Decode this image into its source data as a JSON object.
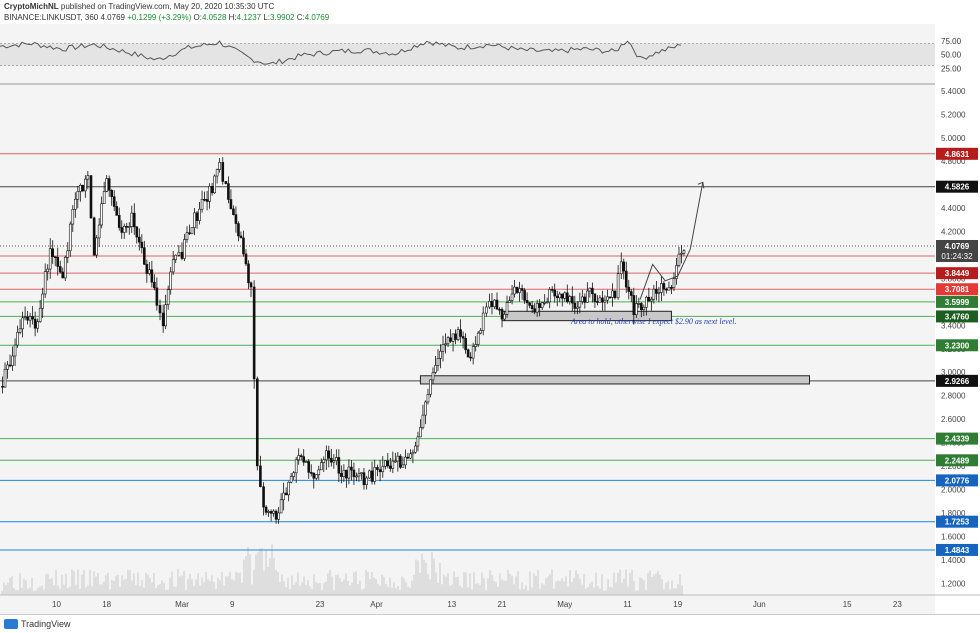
{
  "header": {
    "publisher": "CryptoMichNL",
    "published_text": "published on TradingView.com, May 20, 2020 10:35:30 UTC",
    "symbol": "BINANCE:LINKUSDT, 360",
    "last": "4.0769",
    "change": "+0.1299 (+3.29%)",
    "o_label": "O:",
    "o": "4.0528",
    "h_label": "H:",
    "h": "4.1237",
    "l_label": "L:",
    "l": "3.9902",
    "c_label": "C:",
    "c": "4.0769"
  },
  "footer": {
    "brand": "TradingView"
  },
  "chart_data": {
    "type": "candlestick",
    "timeframe": "360",
    "ylim": [
      1.1,
      5.45
    ],
    "y_ticks": [
      "5.4000",
      "5.2000",
      "5.0000",
      "4.8000",
      "4.6000",
      "4.4000",
      "4.2000",
      "4.0000",
      "3.8000",
      "3.6000",
      "3.4000",
      "3.2000",
      "3.0000",
      "2.8000",
      "2.6000",
      "2.4000",
      "2.2000",
      "2.0000",
      "1.8000",
      "1.6000",
      "1.4000",
      "1.2000"
    ],
    "x_ticks": [
      "10",
      "18",
      "Mar",
      "9",
      "23",
      "Apr",
      "13",
      "21",
      "May",
      "11",
      "19",
      "Jun",
      "15",
      "23"
    ],
    "price_path": [
      [
        "2020-02-01",
        2.88
      ],
      [
        "2020-02-03",
        3.15
      ],
      [
        "2020-02-05",
        3.48
      ],
      [
        "2020-02-07",
        3.42
      ],
      [
        "2020-02-09",
        4.05
      ],
      [
        "2020-02-11",
        3.82
      ],
      [
        "2020-02-13",
        4.48
      ],
      [
        "2020-02-15",
        4.62
      ],
      [
        "2020-02-16",
        4.02
      ],
      [
        "2020-02-18",
        4.68
      ],
      [
        "2020-02-20",
        4.22
      ],
      [
        "2020-02-22",
        4.32
      ],
      [
        "2020-02-24",
        3.95
      ],
      [
        "2020-02-26",
        3.62
      ],
      [
        "2020-02-27",
        3.42
      ],
      [
        "2020-02-29",
        4.05
      ],
      [
        "2020-03-01",
        4.02
      ],
      [
        "2020-03-03",
        4.32
      ],
      [
        "2020-03-05",
        4.48
      ],
      [
        "2020-03-07",
        4.75
      ],
      [
        "2020-03-08",
        4.58
      ],
      [
        "2020-03-10",
        4.18
      ],
      [
        "2020-03-12",
        3.72
      ],
      [
        "2020-03-13",
        2.22
      ],
      [
        "2020-03-14",
        1.85
      ],
      [
        "2020-03-16",
        1.75
      ],
      [
        "2020-03-18",
        2.05
      ],
      [
        "2020-03-20",
        2.32
      ],
      [
        "2020-03-22",
        2.12
      ],
      [
        "2020-03-24",
        2.35
      ],
      [
        "2020-03-26",
        2.18
      ],
      [
        "2020-03-28",
        2.12
      ],
      [
        "2020-03-30",
        2.08
      ],
      [
        "2020-04-02",
        2.18
      ],
      [
        "2020-04-04",
        2.22
      ],
      [
        "2020-04-06",
        2.28
      ],
      [
        "2020-04-08",
        2.52
      ],
      [
        "2020-04-10",
        3.02
      ],
      [
        "2020-04-12",
        3.28
      ],
      [
        "2020-04-14",
        3.32
      ],
      [
        "2020-04-16",
        3.12
      ],
      [
        "2020-04-18",
        3.45
      ],
      [
        "2020-04-19",
        3.62
      ],
      [
        "2020-04-21",
        3.48
      ],
      [
        "2020-04-23",
        3.68
      ],
      [
        "2020-04-25",
        3.62
      ],
      [
        "2020-04-27",
        3.52
      ],
      [
        "2020-04-29",
        3.72
      ],
      [
        "2020-05-01",
        3.62
      ],
      [
        "2020-05-03",
        3.58
      ],
      [
        "2020-05-05",
        3.68
      ],
      [
        "2020-05-07",
        3.62
      ],
      [
        "2020-05-09",
        3.65
      ],
      [
        "2020-05-10",
        3.92
      ],
      [
        "2020-05-12",
        3.52
      ],
      [
        "2020-05-14",
        3.62
      ],
      [
        "2020-05-16",
        3.68
      ],
      [
        "2020-05-18",
        3.78
      ],
      [
        "2020-05-20",
        4.08
      ]
    ],
    "forecast_path": [
      [
        "2020-05-13",
        3.62
      ],
      [
        "2020-05-15",
        3.92
      ],
      [
        "2020-05-17",
        3.78
      ],
      [
        "2020-05-19",
        3.82
      ],
      [
        "2020-05-21",
        4.05
      ],
      [
        "2020-05-23",
        4.62
      ]
    ],
    "levels": [
      {
        "price": "4.8631",
        "line_color": "#e06666",
        "label_bg": "#b71c1c",
        "label_color": "#ffffff"
      },
      {
        "price": "4.5826",
        "line_color": "#444444",
        "label_bg": "#111111",
        "label_color": "#ffffff"
      },
      {
        "price": "3.9914",
        "line_color": "#e06666",
        "label_bg": "#d32f2f",
        "label_color": "#ffffff"
      },
      {
        "price": "3.8449",
        "line_color": "#e06666",
        "label_bg": "#b71c1c",
        "label_color": "#ffffff"
      },
      {
        "price": "3.7081",
        "line_color": "#e06666",
        "label_bg": "#e53935",
        "label_color": "#ffffff"
      },
      {
        "price": "3.5999",
        "line_color": "#4caf50",
        "label_bg": "#2e7d32",
        "label_color": "#ffffff"
      },
      {
        "price": "3.4760",
        "line_color": "#4caf50",
        "label_bg": "#1b5e20",
        "label_color": "#ffffff"
      },
      {
        "price": "3.2300",
        "line_color": "#4caf50",
        "label_bg": "#2e7d32",
        "label_color": "#ffffff"
      },
      {
        "price": "2.9266",
        "line_color": "#444444",
        "label_bg": "#111111",
        "label_color": "#ffffff"
      },
      {
        "price": "2.4339",
        "line_color": "#4caf50",
        "label_bg": "#2e7d32",
        "label_color": "#ffffff"
      },
      {
        "price": "2.2489",
        "line_color": "#4caf50",
        "label_bg": "#2e7d32",
        "label_color": "#ffffff"
      },
      {
        "price": "2.0776",
        "line_color": "#1e88e5",
        "label_bg": "#1565c0",
        "label_color": "#ffffff"
      },
      {
        "price": "1.7253",
        "line_color": "#1e88e5",
        "label_bg": "#1565c0",
        "label_color": "#ffffff"
      },
      {
        "price": "1.4843",
        "line_color": "#1e88e5",
        "label_bg": "#1565c0",
        "label_color": "#ffffff"
      }
    ],
    "current_price": {
      "price": "4.0769",
      "timer": "01:24:32",
      "label_bg": "#444444",
      "label_color": "#ffffff"
    },
    "zones": [
      {
        "from": "2020-04-21",
        "to": "2020-05-18",
        "low": 3.44,
        "high": 3.52
      },
      {
        "from": "2020-04-08",
        "to": "2020-06-09",
        "low": 2.9,
        "high": 2.97
      }
    ],
    "annotation": "Area to hold, otherwise I expect $2.90 as next level.",
    "rsi": {
      "ticks": [
        "75.00",
        "50.00",
        "25.00"
      ],
      "band": [
        30,
        70
      ],
      "path": [
        [
          "2020-02-01",
          65
        ],
        [
          "2020-02-06",
          70
        ],
        [
          "2020-02-11",
          60
        ],
        [
          "2020-02-16",
          68
        ],
        [
          "2020-02-21",
          55
        ],
        [
          "2020-02-26",
          40
        ],
        [
          "2020-03-02",
          62
        ],
        [
          "2020-03-07",
          72
        ],
        [
          "2020-03-12",
          42
        ],
        [
          "2020-03-15",
          32
        ],
        [
          "2020-03-20",
          48
        ],
        [
          "2020-03-25",
          55
        ],
        [
          "2020-03-30",
          58
        ],
        [
          "2020-04-04",
          52
        ],
        [
          "2020-04-09",
          74
        ],
        [
          "2020-04-14",
          62
        ],
        [
          "2020-04-19",
          68
        ],
        [
          "2020-04-24",
          58
        ],
        [
          "2020-04-29",
          55
        ],
        [
          "2020-05-04",
          60
        ],
        [
          "2020-05-09",
          55
        ],
        [
          "2020-05-11",
          77
        ],
        [
          "2020-05-13",
          42
        ],
        [
          "2020-05-16",
          55
        ],
        [
          "2020-05-19",
          65
        ],
        [
          "2020-05-20",
          75
        ]
      ]
    }
  }
}
